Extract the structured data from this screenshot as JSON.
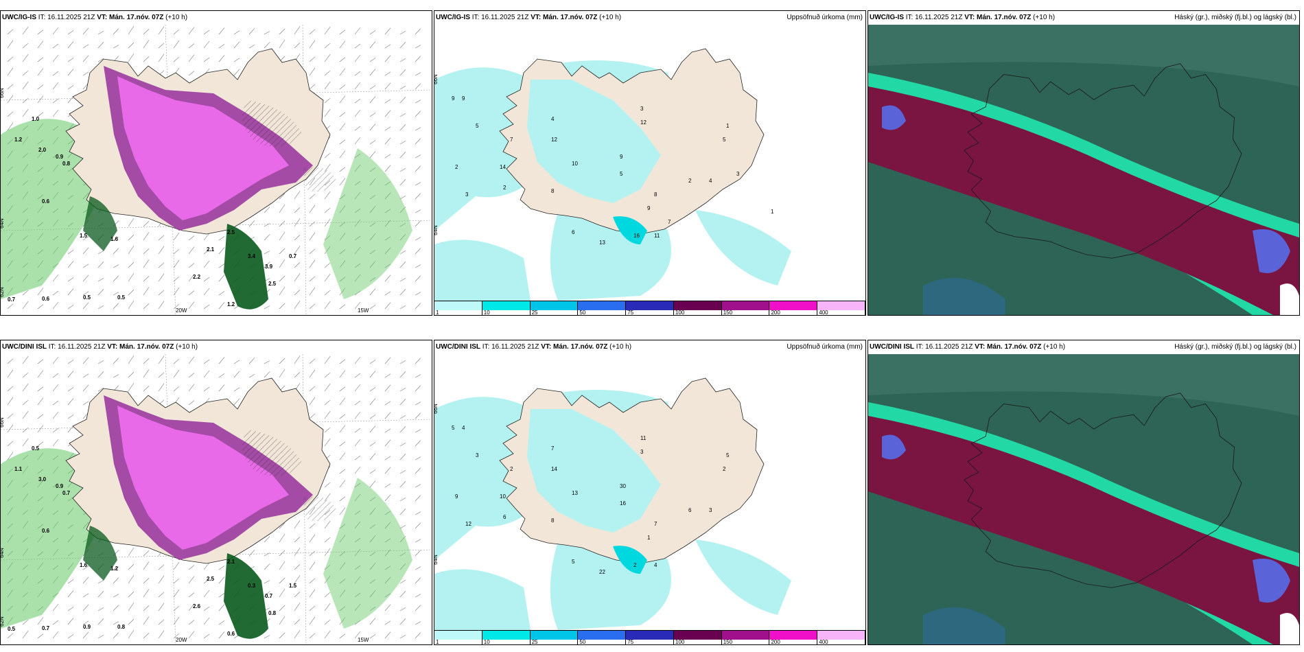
{
  "panels": [
    {
      "id": "p1",
      "kind": "wind",
      "model": "UWC/IG-IS",
      "it_label": "IT:",
      "it": "16.11.2025 21Z",
      "vt_label": "VT:",
      "vt": "Mán. 17.nóv. 07Z",
      "lead": "(+10 h)",
      "right_title": "",
      "lon_labels": [
        "20W",
        "15W"
      ],
      "lat_labels": [
        "66N",
        "64N",
        "62N"
      ],
      "values": [
        "1.0",
        "1.2",
        "2.0",
        "0.9",
        "0.8",
        "0.6",
        "1.5",
        "1.6",
        "2.2",
        "2.1",
        "2.5",
        "3.4",
        "3.9",
        "2.5",
        "0.7",
        "1.2",
        "0.5",
        "0.6",
        "0.7",
        "0.5"
      ]
    },
    {
      "id": "p2",
      "kind": "precip",
      "model": "UWC/IG-IS",
      "it_label": "IT:",
      "it": "16.11.2025 21Z",
      "vt_label": "VT:",
      "vt": "Mán. 17.nóv. 07Z",
      "lead": "(+10 h)",
      "right_title": "Uppsöfnuð úrkoma (mm)",
      "lat_labels": [
        "66N",
        "64N"
      ],
      "values": [
        "9",
        "9",
        "5",
        "7",
        "2",
        "3",
        "2",
        "4",
        "12",
        "10",
        "14",
        "8",
        "6",
        "13",
        "9",
        "5",
        "3",
        "12",
        "16",
        "11",
        "9",
        "8",
        "2",
        "4",
        "5",
        "1",
        "3",
        "1",
        "7"
      ]
    },
    {
      "id": "p3",
      "kind": "cloud",
      "model": "UWC/IG-IS",
      "it_label": "IT:",
      "it": "16.11.2025 21Z",
      "vt_label": "VT:",
      "vt": "Mán. 17.nóv. 07Z",
      "lead": "(+10 h)",
      "right_title": "Háský (gr.), miðský (fj.bl.) og lágský (bl.)"
    },
    {
      "id": "p4",
      "kind": "wind",
      "model": "UWC/DINI ISL",
      "it_label": "IT:",
      "it": "16.11.2025 21Z",
      "vt_label": "VT:",
      "vt": "Mán. 17.nóv. 07Z",
      "lead": "(+10 h)",
      "right_title": "",
      "lon_labels": [
        "20W",
        "15W"
      ],
      "lat_labels": [
        "66N",
        "64N",
        "62N"
      ],
      "values": [
        "0.5",
        "1.1",
        "3.0",
        "0.9",
        "0.7",
        "0.6",
        "1.6",
        "1.2",
        "2.6",
        "2.5",
        "2.1",
        "0.3",
        "0.7",
        "0.8",
        "1.5",
        "0.6",
        "0.8",
        "0.7",
        "0.5",
        "0.9"
      ]
    },
    {
      "id": "p5",
      "kind": "precip",
      "model": "UWC/DINI ISL",
      "it_label": "IT:",
      "it": "16.11.2025 21Z",
      "vt_label": "VT:",
      "vt": "Mán. 17.nóv. 07Z",
      "lead": "(+10 h)",
      "right_title": "Uppsöfnuð úrkoma (mm)",
      "lat_labels": [
        "66N",
        "64N"
      ],
      "values": [
        "5",
        "4",
        "3",
        "2",
        "9",
        "12",
        "6",
        "7",
        "14",
        "13",
        "10",
        "8",
        "5",
        "22",
        "30",
        "16",
        "11",
        "3",
        "2",
        "4",
        "1",
        "7",
        "6",
        "3",
        "2",
        "5"
      ]
    },
    {
      "id": "p6",
      "kind": "cloud",
      "model": "UWC/DINI ISL",
      "it_label": "IT:",
      "it": "16.11.2025 21Z",
      "vt_label": "VT:",
      "vt": "Mán. 17.nóv. 07Z",
      "lead": "(+10 h)",
      "right_title": "Háský (gr.), miðský (fj.bl.) og lágský (bl.)"
    }
  ],
  "colorbar": {
    "labels": [
      "1",
      "10",
      "25",
      "50",
      "75",
      "100",
      "150",
      "200",
      "400"
    ],
    "colors": [
      "#bff8f8",
      "#00e8e8",
      "#00c4e8",
      "#2a6ef0",
      "#2a2ab8",
      "#6a0050",
      "#a0108c",
      "#f010c8",
      "#f8b4f8"
    ]
  },
  "colors": {
    "land": "#f2e6d8",
    "precip_light": "#b4f2f2",
    "wind_pink": "#ec6cec",
    "wind_purple": "#9a3aa0",
    "wind_green": "#64c864",
    "wind_darkgreen": "#0a5a1e",
    "cloud_bg": "#2d6455",
    "cloud_red": "#7a1440",
    "cloud_teal": "#22d8a4",
    "cloud_blue": "#5a64d8"
  }
}
